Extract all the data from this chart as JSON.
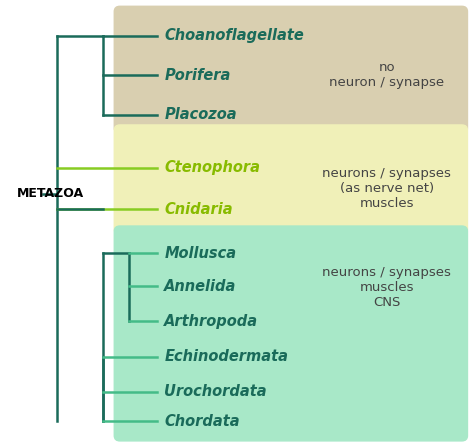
{
  "background_color": "#ffffff",
  "metazoa_label": "METAZOA",
  "box1_color": "#d9cfb0",
  "box2_color": "#f0f0b8",
  "box3_color": "#a8e8c8",
  "line_color_dark": "#1a6b5a",
  "line_color_light": "#88cc22",
  "line_color_green": "#44bb88",
  "taxa": {
    "group1": [
      "Choanoflagellate",
      "Porifera",
      "Placozoa"
    ],
    "group2": [
      "Ctenophora",
      "Cnidaria"
    ],
    "group3": [
      "Mollusca",
      "Annelida",
      "Arthropoda",
      "Echinodermata",
      "Urochordata",
      "Chordata"
    ]
  },
  "ann1": "no\nneuron / synapse",
  "ann2": "neurons / synapses\n(as nerve net)\nmuscles",
  "ann3": "neurons / synapses\nmuscles\nCNS",
  "label_fontsize": 10.5,
  "ann_fontsize": 9.5,
  "metazoa_fontsize": 9
}
